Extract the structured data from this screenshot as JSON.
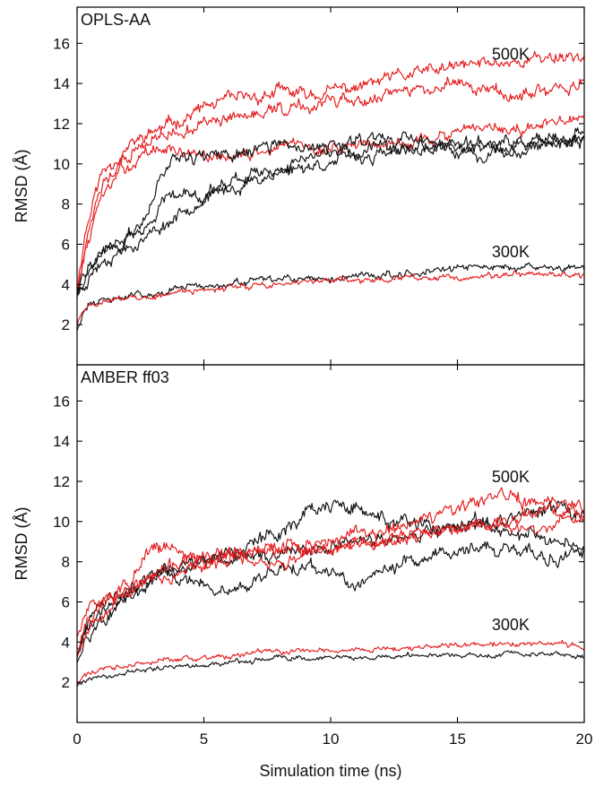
{
  "colors": {
    "red": "#e41a1c",
    "black": "#111111"
  },
  "chart_data": [
    {
      "type": "line",
      "title": "OPLS-AA",
      "xlabel": "",
      "ylabel": "RMSD (Å)",
      "xlim": [
        0,
        20
      ],
      "ylim": [
        0,
        17.8
      ],
      "xticks": [
        0,
        5,
        10,
        15,
        20
      ],
      "xtick_labels": [],
      "yticks": [
        2,
        4,
        6,
        8,
        10,
        12,
        14,
        16
      ],
      "ytick_labels": [
        "2",
        "4",
        "6",
        "8",
        "10",
        "12",
        "14",
        "16"
      ],
      "grid": false,
      "annotations": [
        {
          "text": "500K",
          "x": 17.1,
          "y": 15.2
        },
        {
          "text": "300K",
          "x": 17.1,
          "y": 5.35
        }
      ],
      "series": [
        {
          "color": "red",
          "noise": 0.35,
          "seed": 11,
          "x": [
            0,
            0.3,
            0.7,
            1,
            1.5,
            2,
            2.5,
            3,
            3.5,
            4,
            4.5,
            5,
            6,
            7,
            8,
            9,
            10,
            11,
            12,
            13,
            14,
            15,
            16,
            17,
            18,
            19,
            20
          ],
          "y": [
            3.8,
            6.5,
            8.5,
            9.6,
            10.3,
            10.8,
            11.2,
            11.6,
            11.8,
            12.2,
            12.5,
            12.8,
            13.1,
            13.3,
            13.6,
            13.4,
            13.6,
            13.8,
            14.1,
            14.4,
            14.6,
            14.8,
            15.0,
            15.1,
            15.2,
            15.4,
            15.4
          ]
        },
        {
          "color": "red",
          "noise": 0.35,
          "seed": 12,
          "x": [
            0,
            0.3,
            0.7,
            1,
            1.5,
            2,
            2.5,
            3,
            3.5,
            4,
            4.5,
            5,
            6,
            7,
            8,
            9,
            10,
            11,
            12,
            13,
            14,
            15,
            16,
            17,
            18,
            19,
            20
          ],
          "y": [
            3.6,
            5.8,
            7.8,
            8.9,
            9.7,
            10.3,
            10.8,
            11.2,
            11.4,
            11.6,
            11.8,
            12.0,
            12.2,
            12.4,
            12.7,
            12.8,
            13.0,
            13.2,
            13.5,
            13.7,
            13.8,
            13.9,
            13.7,
            13.5,
            13.4,
            13.7,
            13.9
          ]
        },
        {
          "color": "red",
          "noise": 0.32,
          "seed": 13,
          "x": [
            0,
            0.3,
            0.7,
            1,
            1.5,
            2,
            2.5,
            3,
            3.5,
            4,
            4.5,
            5,
            6,
            7,
            8,
            9,
            10,
            11,
            12,
            13,
            14,
            15,
            16,
            17,
            18,
            19,
            20
          ],
          "y": [
            3.7,
            5.5,
            7.2,
            8.3,
            9.2,
            9.9,
            10.3,
            10.6,
            10.8,
            10.6,
            10.4,
            10.3,
            10.3,
            10.5,
            10.8,
            10.9,
            10.8,
            10.9,
            11.0,
            11.1,
            11.3,
            11.5,
            11.6,
            11.7,
            11.8,
            12.0,
            12.1
          ]
        },
        {
          "color": "black",
          "noise": 0.35,
          "seed": 21,
          "x": [
            0,
            0.5,
            1,
            1.5,
            2,
            2.5,
            3,
            3.5,
            4,
            4.5,
            5,
            6,
            7,
            8,
            9,
            10,
            11,
            12,
            13,
            14,
            15,
            16,
            17,
            18,
            19,
            20
          ],
          "y": [
            3.6,
            4.8,
            5.6,
            6.0,
            6.4,
            7.0,
            8.5,
            10.0,
            10.5,
            10.5,
            10.3,
            10.4,
            10.8,
            10.8,
            10.7,
            10.9,
            11.2,
            11.4,
            11.3,
            11.0,
            10.8,
            10.7,
            10.9,
            11.0,
            11.2,
            11.4
          ]
        },
        {
          "color": "black",
          "noise": 0.35,
          "seed": 22,
          "x": [
            0,
            0.5,
            1,
            1.5,
            2,
            2.5,
            3,
            3.5,
            4,
            4.5,
            5,
            6,
            7,
            8,
            9,
            10,
            11,
            12,
            13,
            14,
            15,
            16,
            17,
            18,
            19,
            20
          ],
          "y": [
            3.7,
            5.0,
            5.5,
            6.0,
            6.3,
            6.5,
            7.2,
            8.5,
            8.8,
            8.6,
            8.6,
            9.0,
            9.5,
            10.0,
            10.3,
            10.5,
            10.6,
            10.7,
            10.8,
            10.8,
            10.6,
            10.5,
            10.7,
            10.9,
            11.0,
            11.2
          ]
        },
        {
          "color": "black",
          "noise": 0.33,
          "seed": 23,
          "x": [
            0,
            0.5,
            1,
            1.5,
            2,
            2.5,
            3,
            3.5,
            4,
            4.5,
            5,
            6,
            7,
            8,
            9,
            10,
            11,
            12,
            13,
            14,
            15,
            16,
            17,
            18,
            19,
            20
          ],
          "y": [
            3.5,
            4.5,
            5.2,
            5.6,
            5.9,
            6.2,
            6.6,
            7.0,
            7.5,
            8.0,
            8.3,
            8.7,
            9.2,
            9.6,
            9.9,
            10.1,
            10.3,
            10.4,
            10.6,
            10.8,
            10.9,
            11.0,
            11.0,
            11.1,
            11.0,
            11.0
          ]
        },
        {
          "color": "black",
          "noise": 0.2,
          "seed": 31,
          "x": [
            0,
            0.2,
            0.5,
            1,
            2,
            3,
            4,
            5,
            6,
            7,
            8,
            9,
            10,
            11,
            12,
            13,
            14,
            15,
            16,
            17,
            18,
            19,
            20
          ],
          "y": [
            1.8,
            2.5,
            3.0,
            3.2,
            3.4,
            3.6,
            3.8,
            3.9,
            4.0,
            4.1,
            4.2,
            4.2,
            4.3,
            4.4,
            4.5,
            4.6,
            4.7,
            4.8,
            4.8,
            4.9,
            4.8,
            4.8,
            4.8
          ]
        },
        {
          "color": "red",
          "noise": 0.17,
          "seed": 32,
          "x": [
            0,
            0.2,
            0.5,
            1,
            2,
            3,
            4,
            5,
            6,
            7,
            8,
            9,
            10,
            11,
            12,
            13,
            14,
            15,
            16,
            17,
            18,
            19,
            20
          ],
          "y": [
            2.0,
            2.6,
            2.9,
            3.1,
            3.3,
            3.4,
            3.6,
            3.7,
            3.8,
            3.9,
            4.0,
            4.1,
            4.2,
            4.2,
            4.2,
            4.3,
            4.3,
            4.4,
            4.4,
            4.5,
            4.5,
            4.5,
            4.4
          ]
        }
      ]
    },
    {
      "type": "line",
      "title": "AMBER ff03",
      "xlabel": "Simulation time (ns)",
      "ylabel": "RMSD (Å)",
      "xlim": [
        0,
        20
      ],
      "ylim": [
        0,
        17.8
      ],
      "xticks": [
        0,
        5,
        10,
        15,
        20
      ],
      "xtick_labels": [
        "0",
        "5",
        "10",
        "15",
        "20"
      ],
      "yticks": [
        2,
        4,
        6,
        8,
        10,
        12,
        14,
        16
      ],
      "ytick_labels": [
        "2",
        "4",
        "6",
        "8",
        "10",
        "12",
        "14",
        "16"
      ],
      "grid": false,
      "annotations": [
        {
          "text": "500K",
          "x": 17.1,
          "y": 11.95
        },
        {
          "text": "300K",
          "x": 17.1,
          "y": 4.6
        }
      ],
      "series": [
        {
          "color": "black",
          "noise": 0.4,
          "seed": 41,
          "x": [
            0,
            0.3,
            0.7,
            1,
            1.5,
            2,
            2.5,
            3,
            3.5,
            4,
            5,
            6,
            7,
            8,
            9,
            10,
            11,
            12,
            13,
            14,
            15,
            16,
            17,
            18,
            19,
            20
          ],
          "y": [
            3.3,
            4.5,
            5.3,
            5.8,
            6.2,
            6.6,
            7.0,
            7.3,
            7.6,
            7.9,
            8.2,
            8.6,
            8.9,
            9.5,
            10.5,
            10.8,
            10.5,
            10.2,
            9.8,
            9.6,
            9.5,
            9.8,
            10.2,
            10.5,
            10.6,
            10.3
          ]
        },
        {
          "color": "black",
          "noise": 0.35,
          "seed": 42,
          "x": [
            0,
            0.3,
            0.7,
            1,
            1.5,
            2,
            2.5,
            3,
            3.5,
            4,
            5,
            6,
            7,
            8,
            9,
            10,
            11,
            12,
            13,
            14,
            15,
            16,
            17,
            18,
            19,
            20
          ],
          "y": [
            3.5,
            4.3,
            5.0,
            5.5,
            6.0,
            6.5,
            6.9,
            7.3,
            7.5,
            7.6,
            7.9,
            8.0,
            8.2,
            8.4,
            8.6,
            8.7,
            8.9,
            9.0,
            9.2,
            9.5,
            9.6,
            9.8,
            9.7,
            9.4,
            9.0,
            8.7
          ]
        },
        {
          "color": "black",
          "noise": 0.38,
          "seed": 43,
          "x": [
            0,
            0.3,
            0.7,
            1,
            1.5,
            2,
            2.5,
            3,
            3.5,
            4,
            5,
            6,
            7,
            8,
            9,
            10,
            11,
            12,
            13,
            14,
            15,
            16,
            17,
            18,
            19,
            20
          ],
          "y": [
            3.2,
            4.1,
            4.8,
            5.3,
            5.7,
            6.2,
            6.7,
            7.0,
            7.2,
            7.0,
            6.8,
            6.6,
            6.9,
            7.5,
            7.8,
            7.2,
            7.0,
            7.4,
            7.9,
            8.3,
            8.6,
            8.8,
            8.6,
            8.3,
            8.1,
            8.4
          ]
        },
        {
          "color": "red",
          "noise": 0.38,
          "seed": 51,
          "x": [
            0,
            0.3,
            0.7,
            1,
            1.5,
            2,
            2.5,
            3,
            3.5,
            4,
            5,
            6,
            7,
            8,
            9,
            10,
            11,
            12,
            13,
            14,
            15,
            16,
            17,
            18,
            19,
            20
          ],
          "y": [
            4.2,
            5.3,
            5.8,
            6.1,
            6.5,
            6.9,
            7.6,
            8.5,
            8.8,
            8.4,
            8.1,
            8.3,
            8.5,
            8.7,
            8.9,
            9.1,
            9.3,
            9.6,
            9.8,
            10.1,
            10.5,
            11.0,
            11.2,
            11.0,
            10.8,
            10.8
          ]
        },
        {
          "color": "red",
          "noise": 0.33,
          "seed": 52,
          "x": [
            0,
            0.3,
            0.7,
            1,
            1.5,
            2,
            2.5,
            3,
            3.5,
            4,
            5,
            6,
            7,
            8,
            9,
            10,
            11,
            12,
            13,
            14,
            15,
            16,
            17,
            18,
            19,
            20
          ],
          "y": [
            3.6,
            4.7,
            5.4,
            5.9,
            6.3,
            6.6,
            6.9,
            7.2,
            7.4,
            7.6,
            7.9,
            8.3,
            8.6,
            8.6,
            8.5,
            8.7,
            8.9,
            9.1,
            9.3,
            9.5,
            9.6,
            9.8,
            10.1,
            10.3,
            10.4,
            10.5
          ]
        },
        {
          "color": "red",
          "noise": 0.33,
          "seed": 53,
          "x": [
            0,
            0.3,
            0.7,
            1,
            1.5,
            2,
            2.5,
            3,
            3.5,
            4,
            5,
            6,
            7,
            8,
            9,
            10,
            11,
            12,
            13,
            14,
            15,
            16,
            17,
            18,
            19,
            20
          ],
          "y": [
            3.4,
            4.4,
            5.2,
            5.7,
            6.1,
            6.5,
            6.9,
            7.3,
            7.6,
            7.9,
            8.2,
            8.3,
            8.1,
            7.9,
            8.2,
            8.6,
            8.9,
            9.1,
            9.3,
            9.5,
            9.7,
            9.9,
            9.7,
            9.5,
            9.9,
            10.2
          ]
        },
        {
          "color": "red",
          "noise": 0.15,
          "seed": 61,
          "x": [
            0,
            0.2,
            0.5,
            1,
            2,
            3,
            4,
            5,
            6,
            7,
            8,
            9,
            10,
            11,
            12,
            13,
            14,
            15,
            16,
            17,
            18,
            19,
            20
          ],
          "y": [
            1.9,
            2.3,
            2.5,
            2.6,
            2.8,
            3.0,
            3.1,
            3.2,
            3.3,
            3.4,
            3.5,
            3.6,
            3.6,
            3.6,
            3.7,
            3.7,
            3.8,
            3.8,
            3.9,
            3.9,
            3.9,
            3.9,
            3.8
          ]
        },
        {
          "color": "black",
          "noise": 0.13,
          "seed": 62,
          "x": [
            0,
            0.2,
            0.5,
            1,
            2,
            3,
            4,
            5,
            6,
            7,
            8,
            9,
            10,
            11,
            12,
            13,
            14,
            15,
            16,
            17,
            18,
            19,
            20
          ],
          "y": [
            1.8,
            2.1,
            2.2,
            2.3,
            2.5,
            2.7,
            2.8,
            2.9,
            3.0,
            3.1,
            3.2,
            3.2,
            3.2,
            3.2,
            3.2,
            3.3,
            3.3,
            3.3,
            3.3,
            3.4,
            3.4,
            3.4,
            3.3
          ]
        }
      ]
    }
  ]
}
